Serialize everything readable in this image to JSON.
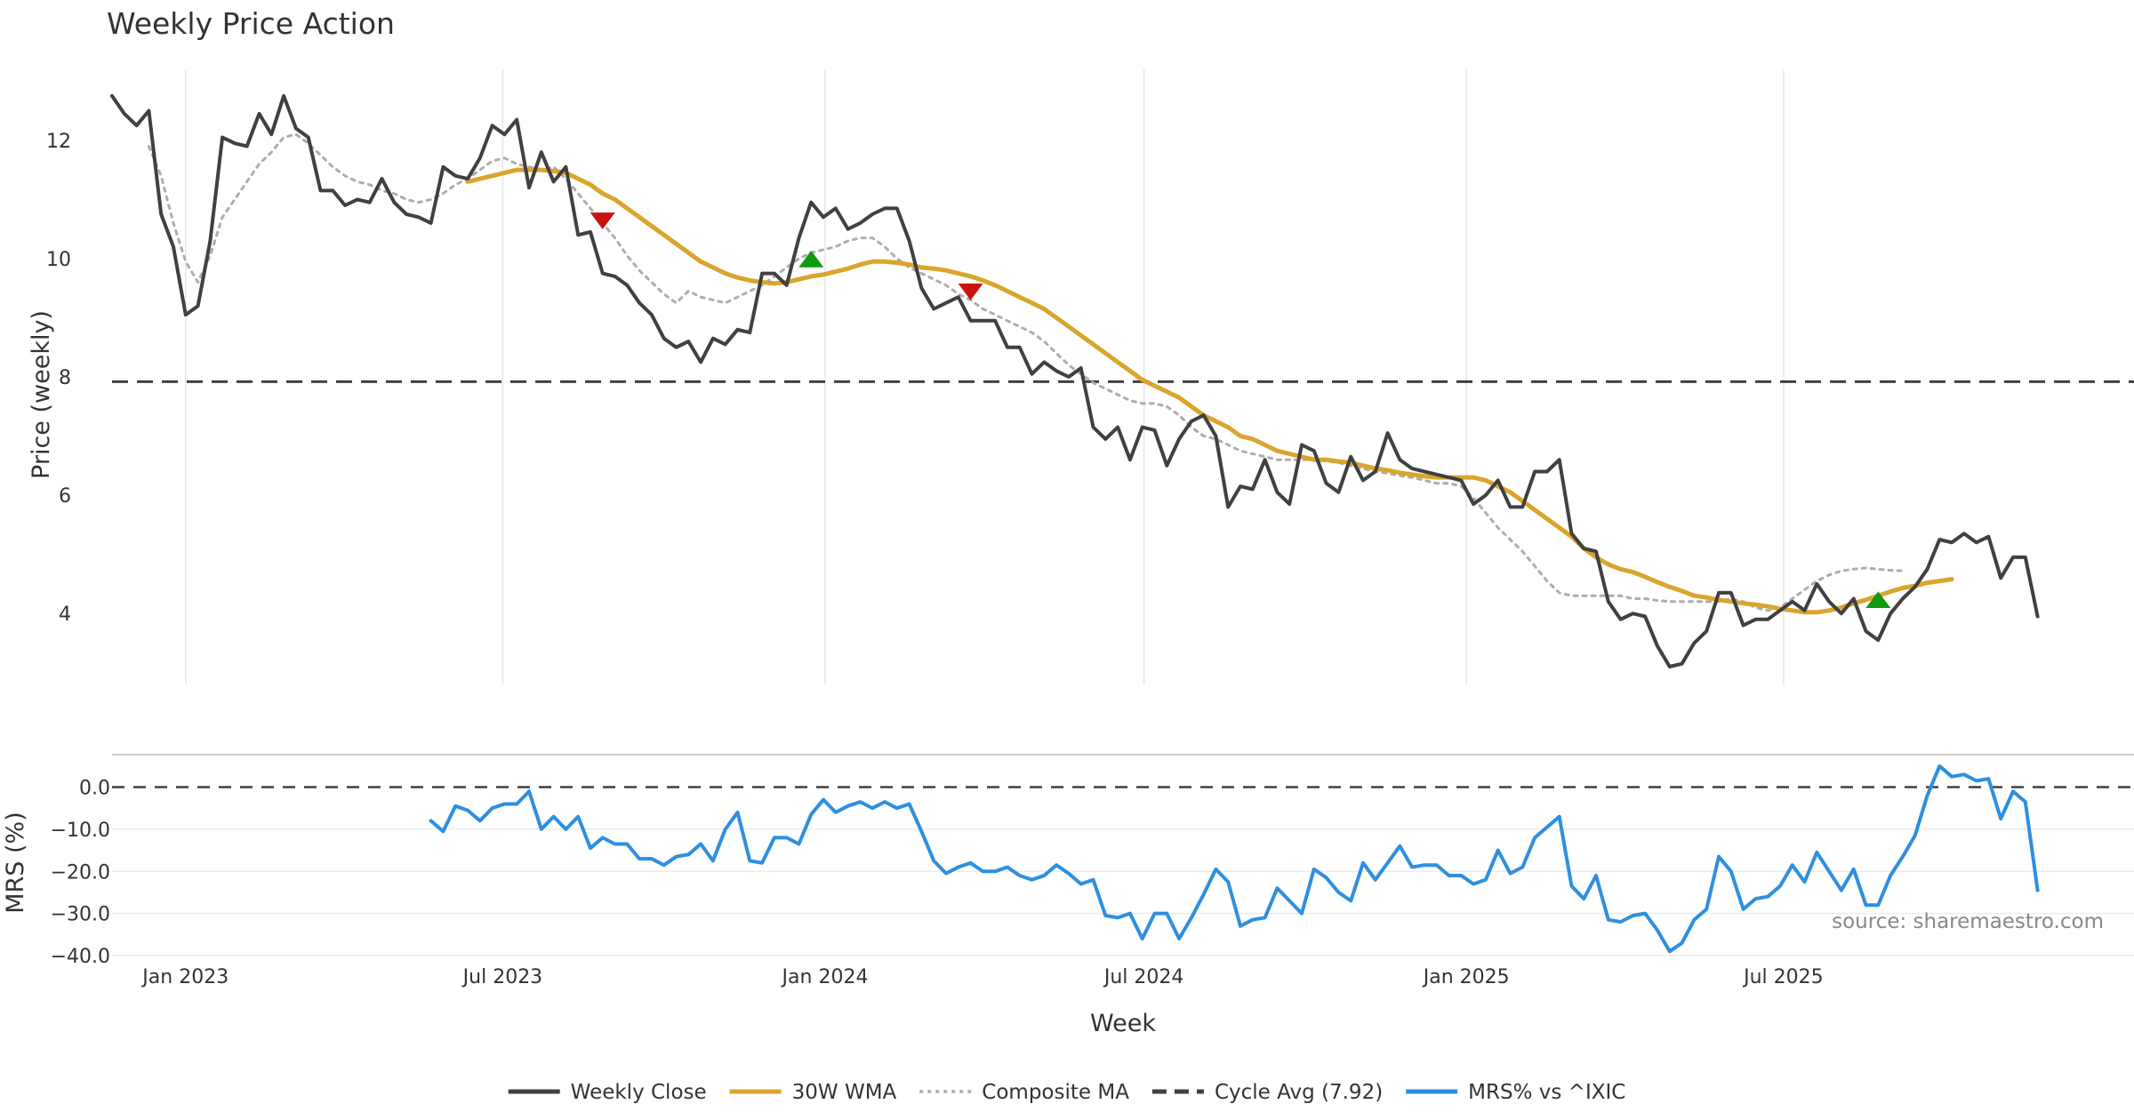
{
  "chart_data": [
    {
      "type": "line",
      "title": "Weekly Price Action",
      "ylabel": "Price (weekly)",
      "xlabel": "Week",
      "ylim": [
        2.8,
        13.2
      ],
      "yticks": [
        4,
        6,
        8,
        10,
        12
      ],
      "x_start": "2022-11-20",
      "x_step_weeks": 1,
      "x_range": [
        "2022-11-20",
        "2026-01-17"
      ],
      "xticks": [
        {
          "date": "2023-01-01",
          "label": "Jan 2023"
        },
        {
          "date": "2023-07-01",
          "label": "Jul 2023"
        },
        {
          "date": "2024-01-01",
          "label": "Jan 2024"
        },
        {
          "date": "2024-07-01",
          "label": "Jul 2024"
        },
        {
          "date": "2025-01-01",
          "label": "Jan 2025"
        },
        {
          "date": "2025-07-01",
          "label": "Jul 2025"
        }
      ],
      "grid": "vertical",
      "series": [
        {
          "name": "Weekly Close",
          "color": "#404040",
          "style": "solid",
          "start_index": 0,
          "values": [
            12.75,
            12.45,
            12.25,
            12.5,
            10.75,
            10.2,
            9.05,
            9.2,
            10.3,
            12.05,
            11.95,
            11.9,
            12.45,
            12.1,
            12.75,
            12.2,
            12.05,
            11.15,
            11.15,
            10.9,
            11.0,
            10.95,
            11.35,
            10.95,
            10.75,
            10.7,
            10.6,
            11.55,
            11.4,
            11.35,
            11.7,
            12.25,
            12.1,
            12.35,
            11.2,
            11.8,
            11.3,
            11.55,
            10.4,
            10.45,
            9.75,
            9.7,
            9.55,
            9.25,
            9.05,
            8.65,
            8.5,
            8.6,
            8.25,
            8.65,
            8.55,
            8.8,
            8.75,
            9.75,
            9.75,
            9.55,
            10.35,
            10.95,
            10.7,
            10.85,
            10.5,
            10.6,
            10.75,
            10.85,
            10.85,
            10.3,
            9.5,
            9.15,
            9.25,
            9.35,
            8.95,
            8.95,
            8.95,
            8.5,
            8.5,
            8.05,
            8.25,
            8.1,
            8.0,
            8.15,
            7.15,
            6.95,
            7.15,
            6.6,
            7.15,
            7.1,
            6.5,
            6.95,
            7.25,
            7.35,
            7.0,
            5.8,
            6.15,
            6.1,
            6.6,
            6.05,
            5.85,
            6.85,
            6.75,
            6.2,
            6.05,
            6.65,
            6.25,
            6.4,
            7.05,
            6.6,
            6.45,
            6.4,
            6.35,
            6.3,
            6.25,
            5.85,
            6.0,
            6.25,
            5.8,
            5.8,
            6.4,
            6.4,
            6.6,
            5.35,
            5.1,
            5.05,
            4.2,
            3.9,
            4.0,
            3.95,
            3.45,
            3.1,
            3.15,
            3.5,
            3.7,
            4.35,
            4.35,
            3.8,
            3.9,
            3.9,
            4.05,
            4.2,
            4.05,
            4.5,
            4.2,
            4.0,
            4.25,
            3.7,
            3.55,
            4.0,
            4.25,
            4.45,
            4.75,
            5.25,
            5.2,
            5.35,
            5.2,
            5.3,
            4.6,
            4.95,
            4.95,
            3.95
          ]
        },
        {
          "name": "30W WMA",
          "color": "#DAA52C",
          "style": "solid",
          "start_index": 29,
          "values": [
            11.3,
            11.35,
            11.4,
            11.45,
            11.5,
            11.5,
            11.5,
            11.48,
            11.45,
            11.35,
            11.25,
            11.1,
            11.0,
            10.85,
            10.7,
            10.55,
            10.4,
            10.25,
            10.1,
            9.95,
            9.85,
            9.75,
            9.68,
            9.63,
            9.6,
            9.58,
            9.6,
            9.65,
            9.7,
            9.73,
            9.78,
            9.83,
            9.9,
            9.95,
            9.95,
            9.93,
            9.9,
            9.85,
            9.83,
            9.8,
            9.75,
            9.7,
            9.63,
            9.55,
            9.45,
            9.35,
            9.25,
            9.15,
            9.0,
            8.85,
            8.7,
            8.55,
            8.4,
            8.25,
            8.1,
            7.95,
            7.85,
            7.75,
            7.65,
            7.5,
            7.35,
            7.25,
            7.15,
            7.0,
            6.95,
            6.85,
            6.75,
            6.7,
            6.65,
            6.6,
            6.6,
            6.57,
            6.55,
            6.5,
            6.45,
            6.42,
            6.38,
            6.35,
            6.32,
            6.3,
            6.3,
            6.3,
            6.3,
            6.25,
            6.15,
            6.05,
            5.9,
            5.75,
            5.6,
            5.45,
            5.3,
            5.1,
            4.95,
            4.83,
            4.75,
            4.7,
            4.62,
            4.53,
            4.45,
            4.38,
            4.3,
            4.27,
            4.23,
            4.2,
            4.17,
            4.15,
            4.12,
            4.08,
            4.05,
            4.02,
            4.02,
            4.05,
            4.1,
            4.17,
            4.23,
            4.3,
            4.37,
            4.43,
            4.47,
            4.52,
            4.55,
            4.58
          ]
        },
        {
          "name": "Composite MA",
          "color": "#ADADAD",
          "style": "dotted",
          "start_index": 3,
          "values": [
            11.9,
            11.4,
            10.6,
            9.95,
            9.6,
            10.05,
            10.7,
            11.0,
            11.3,
            11.6,
            11.8,
            12.05,
            12.1,
            11.95,
            11.75,
            11.55,
            11.4,
            11.3,
            11.25,
            11.15,
            11.1,
            11.0,
            10.95,
            11.0,
            11.1,
            11.25,
            11.35,
            11.5,
            11.65,
            11.7,
            11.6,
            11.55,
            11.5,
            11.55,
            11.35,
            11.1,
            10.85,
            10.6,
            10.35,
            10.05,
            9.8,
            9.6,
            9.4,
            9.25,
            9.45,
            9.35,
            9.3,
            9.25,
            9.35,
            9.45,
            9.55,
            9.7,
            9.85,
            10.0,
            10.1,
            10.15,
            10.2,
            10.3,
            10.35,
            10.35,
            10.2,
            10.0,
            9.85,
            9.75,
            9.65,
            9.55,
            9.4,
            9.3,
            9.15,
            9.05,
            8.95,
            8.85,
            8.75,
            8.6,
            8.4,
            8.2,
            8.05,
            7.9,
            7.8,
            7.7,
            7.6,
            7.55,
            7.55,
            7.5,
            7.35,
            7.15,
            7.0,
            6.95,
            6.85,
            6.75,
            6.7,
            6.65,
            6.6,
            6.6,
            6.6,
            6.6,
            6.58,
            6.55,
            6.5,
            6.45,
            6.4,
            6.37,
            6.33,
            6.3,
            6.25,
            6.2,
            6.2,
            6.15,
            5.95,
            5.7,
            5.45,
            5.25,
            5.05,
            4.8,
            4.55,
            4.35,
            4.3,
            4.3,
            4.3,
            4.3,
            4.3,
            4.25,
            4.25,
            4.22,
            4.2,
            4.2,
            4.2,
            4.2,
            4.2,
            4.25,
            4.2,
            4.1,
            4.05,
            4.1,
            4.25,
            4.4,
            4.55,
            4.65,
            4.72,
            4.75,
            4.77,
            4.75,
            4.73,
            4.72
          ]
        },
        {
          "name": "Cycle Avg (7.92)",
          "color": "#404040",
          "style": "dashed",
          "value": 7.92
        }
      ],
      "markers": [
        {
          "name": "sell-marker",
          "index": 40,
          "value": 10.65,
          "direction": "down",
          "color": "#CC1111"
        },
        {
          "name": "buy-marker",
          "index": 57,
          "value": 9.98,
          "direction": "up",
          "color": "#119911"
        },
        {
          "name": "sell-marker",
          "index": 70,
          "value": 9.45,
          "direction": "down",
          "color": "#CC1111"
        },
        {
          "name": "buy-marker",
          "index": 144,
          "value": 4.22,
          "direction": "up",
          "color": "#119911"
        }
      ]
    },
    {
      "type": "line",
      "ylabel": "MRS (%)",
      "xlabel": "Week",
      "ylim": [
        -40,
        7.5
      ],
      "yticks": [
        0,
        -10,
        -20,
        -30,
        -40
      ],
      "ytick_labels": [
        "0.0",
        "−10.0",
        "−20.0",
        "−30.0",
        "−40.0"
      ],
      "reference_line": 0,
      "series": [
        {
          "name": "MRS% vs ^IXIC",
          "color": "#2E8FE0",
          "style": "solid",
          "start_index": 26,
          "values": [
            -8,
            -10.5,
            -4.5,
            -5.5,
            -8,
            -5,
            -4,
            -4,
            -1,
            -10,
            -7,
            -10,
            -7,
            -14.5,
            -12,
            -13.5,
            -13.5,
            -17,
            -17,
            -18.5,
            -16.5,
            -16,
            -13.5,
            -17.5,
            -10,
            -6,
            -17.5,
            -18,
            -12,
            -12,
            -13.5,
            -6.5,
            -3,
            -6,
            -4.5,
            -3.5,
            -5,
            -3.5,
            -5,
            -4,
            -10.5,
            -17.5,
            -20.5,
            -19,
            -18,
            -20,
            -20,
            -19,
            -21,
            -22,
            -21,
            -18.5,
            -20.5,
            -23,
            -22,
            -30.5,
            -31,
            -30,
            -36,
            -30,
            -30,
            -36,
            -31,
            -25.5,
            -19.5,
            -22.5,
            -33,
            -31.5,
            -31,
            -24,
            -27,
            -30,
            -19.5,
            -21.5,
            -25,
            -27,
            -18,
            -22,
            -18,
            -14,
            -19,
            -18.5,
            -18.5,
            -21,
            -21,
            -23,
            -22,
            -15,
            -20.5,
            -19,
            -12,
            -9.5,
            -7,
            -23.5,
            -26.5,
            -21,
            -31.5,
            -32,
            -30.5,
            -30,
            -34,
            -39,
            -37,
            -31.5,
            -29,
            -16.5,
            -20,
            -29,
            -26.5,
            -26,
            -23.5,
            -18.5,
            -22.5,
            -15.5,
            -20,
            -24.5,
            -19.5,
            -28,
            -28,
            -21,
            -16.5,
            -11.5,
            -2,
            5,
            2.5,
            3,
            1.5,
            2,
            -7.5,
            -1,
            -3.5,
            -24.5
          ]
        }
      ]
    }
  ],
  "legend": [
    {
      "label": "Weekly Close",
      "color": "#404040",
      "style": "solid"
    },
    {
      "label": "30W WMA",
      "color": "#DAA52C",
      "style": "solid"
    },
    {
      "label": "Composite MA",
      "color": "#ADADAD",
      "style": "dotted"
    },
    {
      "label": "Cycle Avg (7.92)",
      "color": "#404040",
      "style": "dashed"
    },
    {
      "label": "MRS% vs ^IXIC",
      "color": "#2E8FE0",
      "style": "solid"
    }
  ],
  "source_note": "source: sharemaestro.com"
}
